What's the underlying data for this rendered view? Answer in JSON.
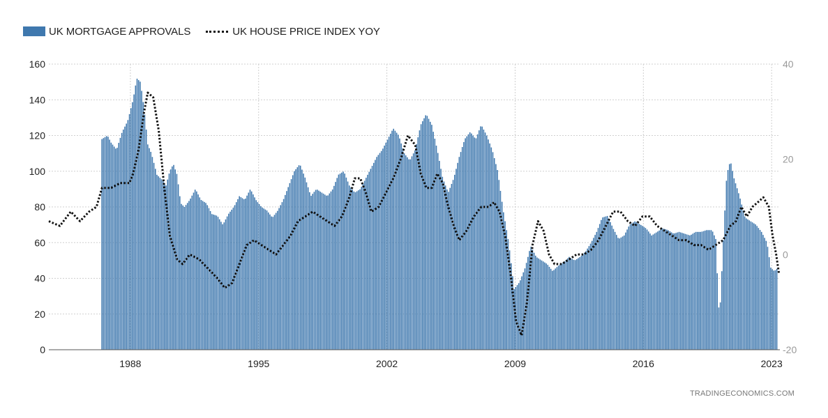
{
  "legend": {
    "bar_label": "UK MORTGAGE APPROVALS",
    "line_label": "UK HOUSE PRICE INDEX YOY"
  },
  "watermark": "TRADINGECONOMICS.COM",
  "colors": {
    "bars": "#3f78ae",
    "line": "#111111",
    "grid": "#cfcfcf",
    "left_axis_text": "#222222",
    "right_axis_text": "#9a9a9a"
  },
  "chart_data": {
    "type": "bar",
    "title": "",
    "xlabel": "",
    "ylabel": "",
    "x_ticks": [
      "1988",
      "1995",
      "2002",
      "2009",
      "2016",
      "2023"
    ],
    "x_range": [
      1983.6,
      2023.5
    ],
    "y_left": {
      "ticks": [
        0,
        20,
        40,
        60,
        80,
        100,
        120,
        140,
        160
      ],
      "range": [
        0,
        160
      ]
    },
    "y_right": {
      "ticks": [
        -20,
        0,
        20,
        40
      ],
      "range": [
        -20,
        40
      ]
    },
    "grid": true,
    "legend_position": "top-left",
    "series": [
      {
        "name": "UK MORTGAGE APPROVALS",
        "type": "bar",
        "axis": "left",
        "points": [
          [
            1986.5,
            118
          ],
          [
            1986.8,
            120
          ],
          [
            1987.0,
            116
          ],
          [
            1987.3,
            112
          ],
          [
            1987.6,
            122
          ],
          [
            1987.9,
            128
          ],
          [
            1988.2,
            140
          ],
          [
            1988.4,
            152
          ],
          [
            1988.6,
            150
          ],
          [
            1988.8,
            135
          ],
          [
            1989.0,
            115
          ],
          [
            1989.2,
            110
          ],
          [
            1989.5,
            98
          ],
          [
            1989.8,
            95
          ],
          [
            1990.0,
            92
          ],
          [
            1990.2,
            100
          ],
          [
            1990.4,
            104
          ],
          [
            1990.6,
            98
          ],
          [
            1990.8,
            82
          ],
          [
            1991.0,
            80
          ],
          [
            1991.3,
            84
          ],
          [
            1991.6,
            90
          ],
          [
            1991.9,
            84
          ],
          [
            1992.2,
            82
          ],
          [
            1992.5,
            76
          ],
          [
            1992.8,
            75
          ],
          [
            1993.1,
            70
          ],
          [
            1993.4,
            76
          ],
          [
            1993.7,
            80
          ],
          [
            1994.0,
            86
          ],
          [
            1994.3,
            84
          ],
          [
            1994.6,
            90
          ],
          [
            1994.9,
            84
          ],
          [
            1995.2,
            80
          ],
          [
            1995.5,
            78
          ],
          [
            1995.8,
            74
          ],
          [
            1996.1,
            78
          ],
          [
            1996.4,
            84
          ],
          [
            1996.7,
            92
          ],
          [
            1997.0,
            100
          ],
          [
            1997.3,
            104
          ],
          [
            1997.6,
            96
          ],
          [
            1997.9,
            86
          ],
          [
            1998.2,
            90
          ],
          [
            1998.5,
            88
          ],
          [
            1998.8,
            86
          ],
          [
            1999.1,
            90
          ],
          [
            1999.4,
            98
          ],
          [
            1999.7,
            100
          ],
          [
            2000.0,
            92
          ],
          [
            2000.3,
            88
          ],
          [
            2000.6,
            90
          ],
          [
            2000.9,
            96
          ],
          [
            2001.2,
            102
          ],
          [
            2001.5,
            108
          ],
          [
            2001.8,
            112
          ],
          [
            2002.1,
            118
          ],
          [
            2002.4,
            124
          ],
          [
            2002.7,
            120
          ],
          [
            2003.0,
            110
          ],
          [
            2003.3,
            106
          ],
          [
            2003.6,
            112
          ],
          [
            2003.9,
            126
          ],
          [
            2004.2,
            132
          ],
          [
            2004.5,
            126
          ],
          [
            2004.8,
            112
          ],
          [
            2005.1,
            96
          ],
          [
            2005.4,
            88
          ],
          [
            2005.7,
            96
          ],
          [
            2006.0,
            108
          ],
          [
            2006.3,
            118
          ],
          [
            2006.6,
            122
          ],
          [
            2006.9,
            118
          ],
          [
            2007.2,
            126
          ],
          [
            2007.5,
            120
          ],
          [
            2007.8,
            112
          ],
          [
            2008.1,
            100
          ],
          [
            2008.4,
            78
          ],
          [
            2008.7,
            60
          ],
          [
            2009.0,
            34
          ],
          [
            2009.3,
            38
          ],
          [
            2009.6,
            46
          ],
          [
            2009.9,
            58
          ],
          [
            2010.2,
            52
          ],
          [
            2010.5,
            50
          ],
          [
            2010.8,
            48
          ],
          [
            2011.1,
            44
          ],
          [
            2011.4,
            47
          ],
          [
            2011.7,
            49
          ],
          [
            2012.0,
            52
          ],
          [
            2012.3,
            50
          ],
          [
            2012.6,
            52
          ],
          [
            2012.9,
            55
          ],
          [
            2013.2,
            60
          ],
          [
            2013.5,
            66
          ],
          [
            2013.8,
            74
          ],
          [
            2014.1,
            75
          ],
          [
            2014.4,
            68
          ],
          [
            2014.7,
            62
          ],
          [
            2015.0,
            64
          ],
          [
            2015.3,
            70
          ],
          [
            2015.6,
            72
          ],
          [
            2015.9,
            70
          ],
          [
            2016.2,
            68
          ],
          [
            2016.5,
            64
          ],
          [
            2016.8,
            66
          ],
          [
            2017.1,
            68
          ],
          [
            2017.4,
            67
          ],
          [
            2017.7,
            65
          ],
          [
            2018.0,
            66
          ],
          [
            2018.3,
            65
          ],
          [
            2018.6,
            64
          ],
          [
            2018.9,
            66
          ],
          [
            2019.2,
            66
          ],
          [
            2019.5,
            67
          ],
          [
            2019.8,
            67
          ],
          [
            2020.0,
            62
          ],
          [
            2020.2,
            16
          ],
          [
            2020.4,
            58
          ],
          [
            2020.6,
            98
          ],
          [
            2020.8,
            106
          ],
          [
            2021.0,
            96
          ],
          [
            2021.3,
            86
          ],
          [
            2021.6,
            74
          ],
          [
            2021.9,
            72
          ],
          [
            2022.2,
            70
          ],
          [
            2022.5,
            66
          ],
          [
            2022.8,
            60
          ],
          [
            2023.0,
            46
          ],
          [
            2023.2,
            44
          ],
          [
            2023.4,
            46
          ]
        ]
      },
      {
        "name": "UK HOUSE PRICE INDEX YOY",
        "type": "line",
        "axis": "right",
        "points": [
          [
            1983.6,
            7
          ],
          [
            1984.2,
            6
          ],
          [
            1984.8,
            9
          ],
          [
            1985.3,
            7
          ],
          [
            1985.8,
            9
          ],
          [
            1986.2,
            10
          ],
          [
            1986.5,
            14
          ],
          [
            1987.0,
            14
          ],
          [
            1987.5,
            15
          ],
          [
            1988.0,
            15
          ],
          [
            1988.2,
            17
          ],
          [
            1988.5,
            22
          ],
          [
            1988.8,
            30
          ],
          [
            1989.0,
            34
          ],
          [
            1989.3,
            33
          ],
          [
            1989.6,
            26
          ],
          [
            1989.9,
            14
          ],
          [
            1990.2,
            4
          ],
          [
            1990.6,
            -1
          ],
          [
            1990.9,
            -2
          ],
          [
            1991.3,
            0
          ],
          [
            1991.8,
            -1
          ],
          [
            1992.3,
            -3
          ],
          [
            1992.8,
            -5
          ],
          [
            1993.2,
            -7
          ],
          [
            1993.6,
            -6
          ],
          [
            1994.0,
            -2
          ],
          [
            1994.4,
            2
          ],
          [
            1994.8,
            3
          ],
          [
            1995.2,
            2
          ],
          [
            1995.6,
            1
          ],
          [
            1996.0,
            0
          ],
          [
            1996.4,
            2
          ],
          [
            1996.8,
            4
          ],
          [
            1997.2,
            7
          ],
          [
            1997.6,
            8
          ],
          [
            1998.0,
            9
          ],
          [
            1998.4,
            8
          ],
          [
            1998.8,
            7
          ],
          [
            1999.2,
            6
          ],
          [
            1999.6,
            8
          ],
          [
            2000.0,
            12
          ],
          [
            2000.3,
            16
          ],
          [
            2000.6,
            16
          ],
          [
            2000.9,
            13
          ],
          [
            2001.2,
            9
          ],
          [
            2001.6,
            10
          ],
          [
            2002.0,
            13
          ],
          [
            2002.4,
            16
          ],
          [
            2002.8,
            20
          ],
          [
            2003.2,
            25
          ],
          [
            2003.6,
            23
          ],
          [
            2003.9,
            17
          ],
          [
            2004.2,
            14
          ],
          [
            2004.5,
            14
          ],
          [
            2004.8,
            17
          ],
          [
            2005.1,
            15
          ],
          [
            2005.4,
            10
          ],
          [
            2005.7,
            6
          ],
          [
            2006.0,
            3
          ],
          [
            2006.4,
            5
          ],
          [
            2006.8,
            8
          ],
          [
            2007.2,
            10
          ],
          [
            2007.6,
            10
          ],
          [
            2007.9,
            11
          ],
          [
            2008.2,
            9
          ],
          [
            2008.5,
            4
          ],
          [
            2008.8,
            -4
          ],
          [
            2009.1,
            -14
          ],
          [
            2009.4,
            -17
          ],
          [
            2009.7,
            -10
          ],
          [
            2010.0,
            2
          ],
          [
            2010.3,
            7
          ],
          [
            2010.6,
            5
          ],
          [
            2010.9,
            0
          ],
          [
            2011.2,
            -2
          ],
          [
            2011.6,
            -2
          ],
          [
            2012.0,
            -1
          ],
          [
            2012.4,
            0
          ],
          [
            2012.8,
            0
          ],
          [
            2013.2,
            1
          ],
          [
            2013.6,
            3
          ],
          [
            2014.0,
            6
          ],
          [
            2014.4,
            9
          ],
          [
            2014.8,
            9
          ],
          [
            2015.2,
            7
          ],
          [
            2015.6,
            6
          ],
          [
            2016.0,
            8
          ],
          [
            2016.4,
            8
          ],
          [
            2016.8,
            6
          ],
          [
            2017.2,
            5
          ],
          [
            2017.6,
            4
          ],
          [
            2018.0,
            3
          ],
          [
            2018.4,
            3
          ],
          [
            2018.8,
            2
          ],
          [
            2019.2,
            2
          ],
          [
            2019.6,
            1
          ],
          [
            2020.0,
            2
          ],
          [
            2020.4,
            3
          ],
          [
            2020.8,
            6
          ],
          [
            2021.1,
            7
          ],
          [
            2021.4,
            10
          ],
          [
            2021.7,
            8
          ],
          [
            2022.0,
            10
          ],
          [
            2022.3,
            11
          ],
          [
            2022.6,
            12
          ],
          [
            2022.9,
            10
          ],
          [
            2023.1,
            4
          ],
          [
            2023.3,
            0
          ],
          [
            2023.45,
            -4
          ]
        ]
      }
    ]
  }
}
